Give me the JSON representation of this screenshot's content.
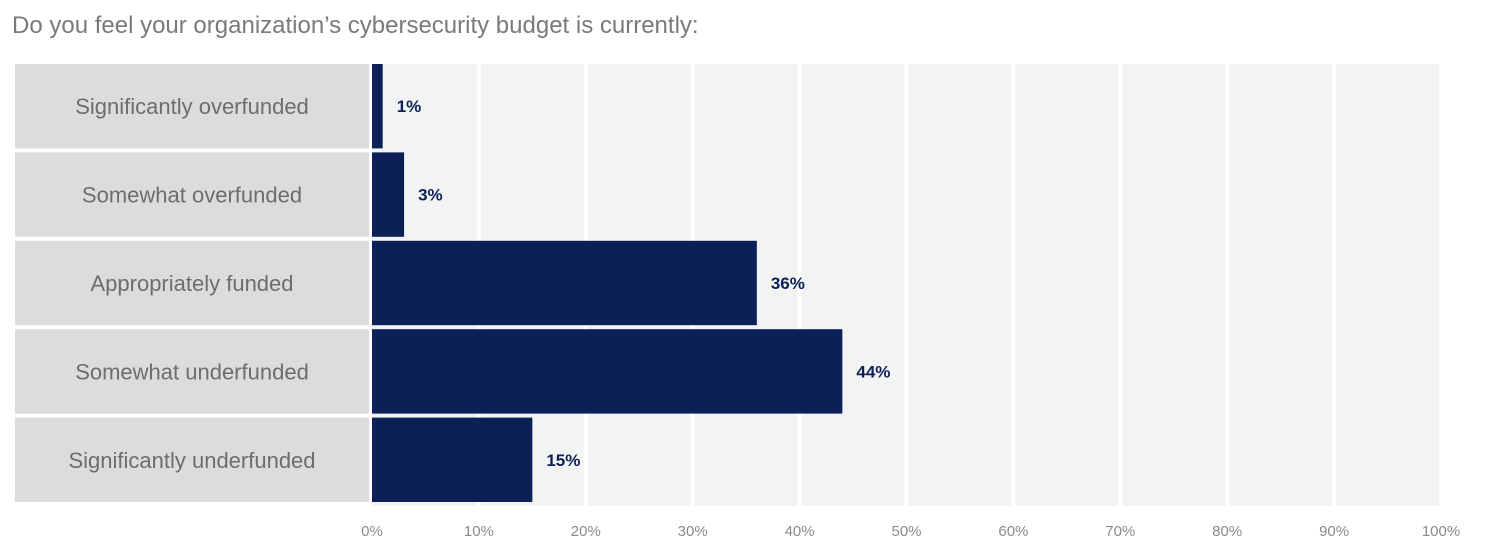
{
  "chart_data": {
    "type": "bar",
    "orientation": "horizontal",
    "title": "Do you feel your organization’s cybersecurity budget is currently:",
    "categories": [
      "Significantly overfunded",
      "Somewhat overfunded",
      "Appropriately funded",
      "Somewhat underfunded",
      "Significantly underfunded"
    ],
    "values": [
      1,
      3,
      36,
      44,
      15
    ],
    "value_labels": [
      "1%",
      "3%",
      "36%",
      "44%",
      "15%"
    ],
    "xlim": [
      0,
      100
    ],
    "xticks": [
      0,
      10,
      20,
      30,
      40,
      50,
      60,
      70,
      80,
      90,
      100
    ],
    "xtick_labels": [
      "0%",
      "10%",
      "20%",
      "30%",
      "40%",
      "50%",
      "60%",
      "70%",
      "80%",
      "90%",
      "100%"
    ],
    "xlabel": "",
    "ylabel": "",
    "grid": true,
    "legend": "none"
  },
  "colors": {
    "bar": "#0c1f57",
    "plot_background": "#f2f3f3",
    "label_panel": "#dcdcdd",
    "gridline": "#ffffff",
    "title_text": "#7a7a7a",
    "category_text": "#6d6d6d",
    "value_text": "#0c1f57",
    "tick_text": "#8a8a8a"
  }
}
